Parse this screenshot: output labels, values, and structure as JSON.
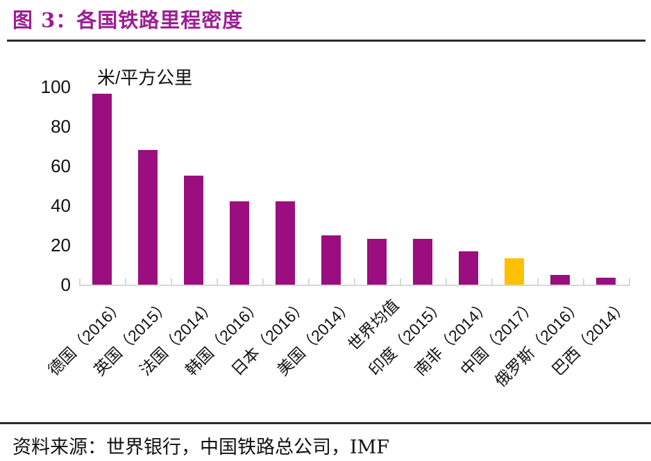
{
  "header": {
    "title": "图 3：各国铁路里程密度"
  },
  "footer": {
    "source": "资料来源：世界银行，中国铁路总公司，IMF"
  },
  "chart_data": {
    "type": "bar",
    "title": "各国铁路里程密度",
    "unit_label": "米/平方公里",
    "categories": [
      "德国（2016）",
      "英国（2015）",
      "法国（2014）",
      "韩国（2016）",
      "日本（2016）",
      "美国（2014）",
      "世界均值",
      "印度（2015）",
      "南非（2014）",
      "中国（2017）",
      "俄罗斯（2016）",
      "巴西（2014）"
    ],
    "values": [
      96.5,
      68,
      55,
      42,
      42,
      25,
      23,
      23,
      17,
      13.5,
      5,
      3.5
    ],
    "highlight_index": 9,
    "xlabel": "",
    "ylabel": "米/平方公里",
    "ylim": [
      0,
      100
    ],
    "yticks": [
      0,
      20,
      40,
      60,
      80,
      100
    ],
    "grid": false,
    "legend": "none",
    "colors": {
      "bar": "#9A0E80",
      "highlight": "#FFC000",
      "axis_line": "#D6D6D6",
      "text": "#111111",
      "title": "#9C1E93"
    }
  }
}
